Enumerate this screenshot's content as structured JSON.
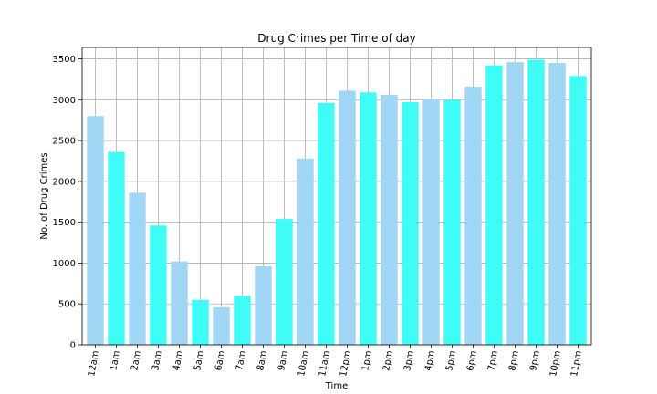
{
  "chart_data": {
    "type": "bar",
    "title": "Drug Crimes per Time of day",
    "xlabel": "Time",
    "ylabel": "No. of Drug Crimes",
    "categories": [
      "12am",
      "1am",
      "2am",
      "3am",
      "4am",
      "5am",
      "6am",
      "7am",
      "8am",
      "9am",
      "10am",
      "11am",
      "12pm",
      "1pm",
      "2pm",
      "3pm",
      "4pm",
      "5pm",
      "6pm",
      "7pm",
      "8pm",
      "9pm",
      "10pm",
      "11pm"
    ],
    "values": [
      2800,
      2360,
      1860,
      1460,
      1020,
      550,
      460,
      600,
      960,
      1540,
      2280,
      2960,
      3110,
      3090,
      3060,
      2970,
      3010,
      3000,
      3160,
      3420,
      3460,
      3490,
      3450,
      3290
    ],
    "yticks": [
      0,
      500,
      1000,
      1500,
      2000,
      2500,
      3000,
      3500
    ],
    "ylim": [
      0,
      3640
    ],
    "grid": true,
    "colors": {
      "odd_bars": "#a1d6f5",
      "even_bars": "#3ffcf7",
      "axis": "#000000",
      "grid": "#b0b0b0"
    }
  }
}
